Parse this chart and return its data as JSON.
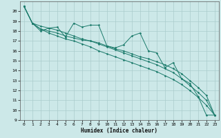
{
  "xlabel": "Humidex (Indice chaleur)",
  "bg_color": "#cce8e8",
  "grid_color": "#aacccc",
  "line_color": "#1a7a6a",
  "xlim": [
    -0.5,
    23.5
  ],
  "ylim": [
    9,
    21
  ],
  "xticks": [
    0,
    1,
    2,
    3,
    4,
    5,
    6,
    7,
    8,
    9,
    10,
    11,
    12,
    13,
    14,
    15,
    16,
    17,
    18,
    19,
    20,
    21,
    22,
    23
  ],
  "yticks": [
    9,
    10,
    11,
    12,
    13,
    14,
    15,
    16,
    17,
    18,
    19,
    20
  ],
  "lines": [
    {
      "x": [
        0,
        1,
        2,
        3,
        4,
        5,
        6,
        7,
        8,
        9,
        10,
        11,
        12,
        13,
        14,
        15,
        16,
        17,
        18,
        19,
        20,
        21,
        22,
        23
      ],
      "y": [
        20.5,
        18.8,
        18.0,
        18.3,
        18.4,
        17.4,
        18.8,
        18.4,
        18.6,
        18.6,
        16.5,
        16.3,
        16.6,
        17.5,
        17.8,
        16.0,
        15.8,
        14.3,
        14.8,
        13.2,
        12.7,
        11.4,
        9.5,
        9.5
      ]
    },
    {
      "x": [
        0,
        1,
        2,
        3,
        4,
        5,
        6,
        7,
        8,
        9,
        10,
        11,
        12,
        13,
        14,
        15,
        16,
        17,
        18,
        19,
        20,
        21,
        22,
        23
      ],
      "y": [
        20.5,
        18.8,
        18.2,
        18.0,
        17.8,
        17.5,
        17.3,
        17.1,
        17.0,
        16.8,
        16.5,
        16.2,
        16.0,
        15.7,
        15.4,
        15.2,
        14.9,
        14.6,
        14.2,
        13.7,
        13.0,
        12.3,
        11.5,
        9.5
      ]
    },
    {
      "x": [
        0,
        1,
        2,
        3,
        4,
        5,
        6,
        7,
        8,
        9,
        10,
        11,
        12,
        13,
        14,
        15,
        16,
        17,
        18,
        19,
        20,
        21,
        22,
        23
      ],
      "y": [
        20.5,
        18.8,
        18.5,
        18.3,
        18.1,
        17.8,
        17.5,
        17.2,
        17.0,
        16.7,
        16.4,
        16.1,
        15.8,
        15.5,
        15.2,
        14.9,
        14.6,
        14.2,
        13.8,
        13.2,
        12.5,
        11.8,
        11.0,
        9.5
      ]
    },
    {
      "x": [
        0,
        1,
        2,
        3,
        4,
        5,
        6,
        7,
        8,
        9,
        10,
        11,
        12,
        13,
        14,
        15,
        16,
        17,
        18,
        19,
        20,
        21,
        22,
        23
      ],
      "y": [
        20.5,
        18.8,
        18.2,
        17.8,
        17.5,
        17.2,
        17.0,
        16.7,
        16.4,
        16.0,
        15.7,
        15.4,
        15.1,
        14.8,
        14.5,
        14.2,
        13.9,
        13.5,
        13.1,
        12.6,
        12.0,
        11.3,
        10.5,
        9.5
      ]
    }
  ]
}
